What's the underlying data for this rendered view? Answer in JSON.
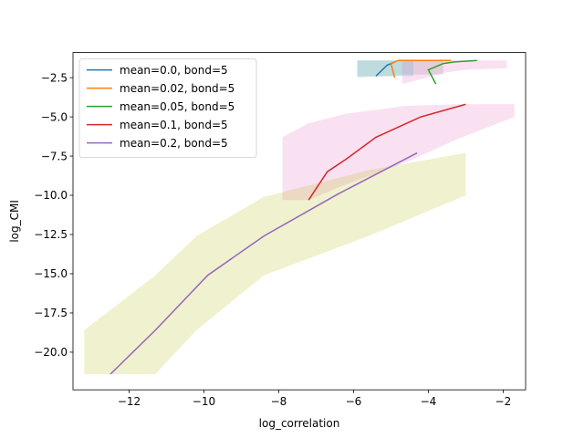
{
  "chart_data": {
    "type": "line",
    "xlabel": "log_correlation",
    "ylabel": "log_CMI",
    "xlim": [
      -13.5,
      -1.4
    ],
    "ylim": [
      -22.4,
      -0.9
    ],
    "xticks": [
      -12,
      -10,
      -8,
      -6,
      -4,
      -2
    ],
    "yticks": [
      -2.5,
      -5.0,
      -7.5,
      -10.0,
      -12.5,
      -15.0,
      -17.5,
      -20.0
    ],
    "xtick_labels": [
      "−12",
      "−10",
      "−8",
      "−6",
      "−4",
      "−2"
    ],
    "ytick_labels": [
      "−2.5",
      "−5.0",
      "−7.5",
      "−10.0",
      "−12.5",
      "−15.0",
      "−17.5",
      "−20.0"
    ],
    "grid": false,
    "legend_position": "top-left",
    "series": [
      {
        "name": "mean=0.0, bond=5",
        "color": "#1f77b4",
        "band_color": "#17becf",
        "x": [
          -5.4,
          -5.1,
          -4.9
        ],
        "y": [
          -2.4,
          -1.7,
          -1.5
        ],
        "band_upper": [
          -1.4,
          -1.4,
          -1.4
        ],
        "band_lower": [
          -2.4,
          -2.4,
          -2.4
        ],
        "band_x": [
          -5.9,
          -5.1,
          -4.4
        ]
      },
      {
        "name": "mean=0.02, bond=5",
        "color": "#ff7f0e",
        "band_color": "#8c8c8c",
        "x": [
          -4.9,
          -5.0,
          -4.8,
          -4.4,
          -3.4
        ],
        "y": [
          -2.5,
          -1.6,
          -1.4,
          -1.4,
          -1.4
        ],
        "band_upper": [
          -1.4,
          -1.4,
          -1.4,
          -1.4,
          -1.4
        ],
        "band_lower": [
          -2.5,
          -2.4,
          -2.3,
          -2.3,
          -2.3
        ],
        "band_x": [
          -5.9,
          -5.0,
          -4.6,
          -4.2,
          -3.6
        ]
      },
      {
        "name": "mean=0.05, bond=5",
        "color": "#2ca02c",
        "band_color": "#e377c2",
        "x": [
          -3.8,
          -4.0,
          -3.6,
          -3.3,
          -2.7
        ],
        "y": [
          -2.9,
          -2.0,
          -1.6,
          -1.5,
          -1.4
        ],
        "band_upper": [
          -1.4,
          -1.4,
          -1.4,
          -1.4,
          -1.4
        ],
        "band_lower": [
          -2.9,
          -2.6,
          -2.2,
          -2.0,
          -1.9
        ],
        "band_x": [
          -4.7,
          -4.2,
          -3.6,
          -3.0,
          -1.9
        ]
      },
      {
        "name": "mean=0.1, bond=5",
        "color": "#d62728",
        "band_color": "#e377c2",
        "x": [
          -7.2,
          -6.7,
          -6.2,
          -5.4,
          -4.2,
          -3.0
        ],
        "y": [
          -10.3,
          -8.5,
          -7.7,
          -6.3,
          -5.0,
          -4.2
        ],
        "band_upper": [
          -6.3,
          -5.4,
          -4.8,
          -4.3,
          -4.2,
          -4.2
        ],
        "band_lower": [
          -10.3,
          -10.3,
          -9.3,
          -7.9,
          -6.4,
          -5.0
        ],
        "band_x": [
          -7.9,
          -7.2,
          -6.2,
          -4.6,
          -3.2,
          -1.7
        ]
      },
      {
        "name": "mean=0.2, bond=5",
        "color": "#9467bd",
        "band_color": "#bcbd22",
        "x": [
          -12.5,
          -11.3,
          -9.9,
          -8.4,
          -6.4,
          -4.3
        ],
        "y": [
          -21.4,
          -18.6,
          -15.1,
          -12.6,
          -9.9,
          -7.3
        ],
        "band_upper": [
          -18.6,
          -15.1,
          -12.6,
          -10.1,
          -8.4,
          -7.3
        ],
        "band_lower": [
          -21.4,
          -21.4,
          -18.6,
          -15.1,
          -12.6,
          -10.0
        ],
        "band_x": [
          -13.2,
          -11.3,
          -10.2,
          -8.4,
          -5.6,
          -3.0
        ]
      }
    ]
  }
}
